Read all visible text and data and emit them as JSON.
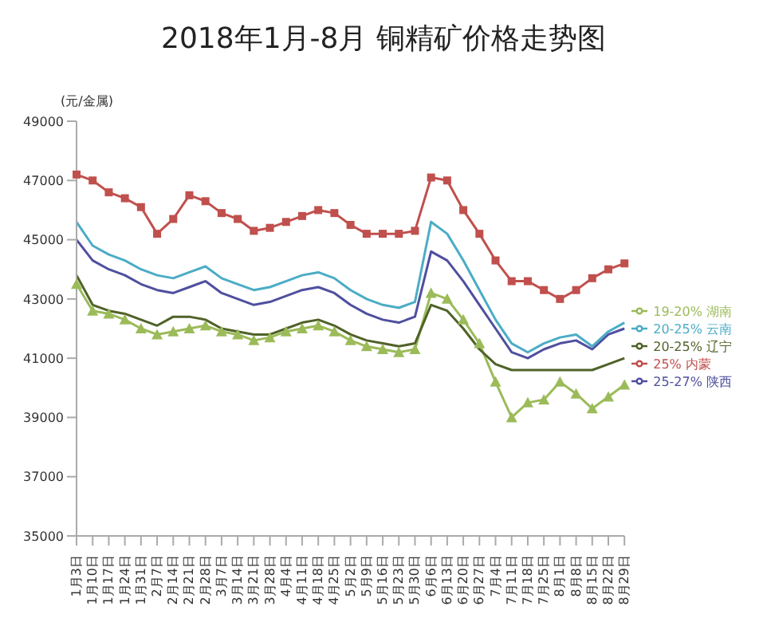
{
  "chart_data": {
    "type": "line",
    "title": "2018年1月-8月 铜精矿价格走势图",
    "ylabel": "(元/金属)",
    "categories": [
      "1月3日",
      "1月10日",
      "1月17日",
      "1月24日",
      "1月31日",
      "2月7日",
      "2月14日",
      "2月21日",
      "2月28日",
      "3月7日",
      "3月14日",
      "3月21日",
      "3月28日",
      "4月4日",
      "4月11日",
      "4月18日",
      "4月25日",
      "5月2日",
      "5月9日",
      "5月16日",
      "5月23日",
      "5月30日",
      "6月6日",
      "6月13日",
      "6月20日",
      "6月27日",
      "7月4日",
      "7月11日",
      "7月18日",
      "7月25日",
      "8月1日",
      "8月8日",
      "8月15日",
      "8月22日",
      "8月29日"
    ],
    "ylim": [
      35000,
      49000
    ],
    "yticks": [
      35000,
      37000,
      39000,
      41000,
      43000,
      45000,
      47000,
      49000
    ],
    "grid": false,
    "legend": "right",
    "line_style": "solid",
    "series": [
      {
        "name": "25% 内蒙",
        "color": "#c0504d",
        "marker": "square",
        "values": [
          47200,
          47000,
          46600,
          46400,
          46100,
          45200,
          45700,
          46500,
          46300,
          45900,
          45700,
          45300,
          45400,
          45600,
          45800,
          46000,
          45900,
          45500,
          45200,
          45200,
          45200,
          45300,
          47100,
          47000,
          46000,
          45200,
          44300,
          43600,
          43600,
          43300,
          43000,
          43300,
          43700,
          44000,
          44200
        ]
      },
      {
        "name": "25-27% 陕西",
        "color": "#4f4f9f",
        "marker": "none",
        "values": [
          45000,
          44300,
          44000,
          43800,
          43500,
          43300,
          43200,
          43400,
          43600,
          43200,
          43000,
          42800,
          42900,
          43100,
          43300,
          43400,
          43200,
          42800,
          42500,
          42300,
          42200,
          42400,
          44600,
          44300,
          43600,
          42800,
          42000,
          41200,
          41000,
          41300,
          41500,
          41600,
          41300,
          41800,
          42000
        ]
      },
      {
        "name": "19-20% 湖南",
        "color": "#9bbb59",
        "marker": "triangle",
        "values": [
          43500,
          42600,
          42500,
          42300,
          42000,
          41800,
          41900,
          42000,
          42100,
          41900,
          41800,
          41600,
          41700,
          41900,
          42000,
          42100,
          41900,
          41600,
          41400,
          41300,
          41200,
          41300,
          43200,
          43000,
          42300,
          41500,
          40200,
          39000,
          39500,
          39600,
          40200,
          39800,
          39300,
          39700,
          40100
        ]
      },
      {
        "name": "20-25% 辽宁",
        "color": "#4f6228",
        "marker": "none",
        "values": [
          43800,
          42800,
          42600,
          42500,
          42300,
          42100,
          42400,
          42400,
          42300,
          42000,
          41900,
          41800,
          41800,
          42000,
          42200,
          42300,
          42100,
          41800,
          41600,
          41500,
          41400,
          41500,
          42800,
          42600,
          42000,
          41300,
          40800,
          40600,
          40600,
          40600,
          40600,
          40600,
          40600,
          40800,
          41000
        ]
      },
      {
        "name": "20-25% 云南",
        "color": "#4bacc6",
        "marker": "none",
        "values": [
          45600,
          44800,
          44500,
          44300,
          44000,
          43800,
          43700,
          43900,
          44100,
          43700,
          43500,
          43300,
          43400,
          43600,
          43800,
          43900,
          43700,
          43300,
          43000,
          42800,
          42700,
          42900,
          45600,
          45200,
          44300,
          43300,
          42300,
          41500,
          41200,
          41500,
          41700,
          41800,
          41400,
          41900,
          42200
        ]
      }
    ]
  }
}
